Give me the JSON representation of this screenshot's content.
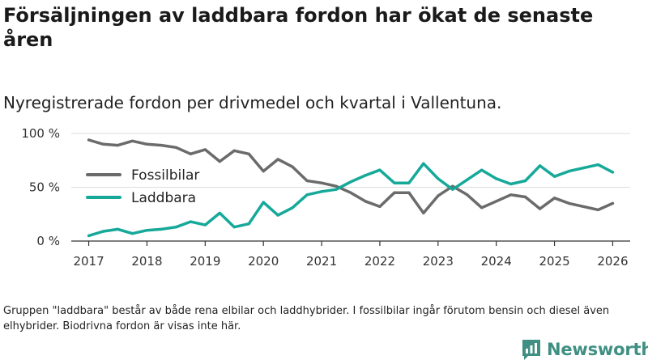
{
  "title": "Försäljningen av laddbara fordon har ökat de senaste åren",
  "subtitle": "Nyregistrerade fordon per drivmedel och kvartal i Vallentuna.",
  "footnote": "Gruppen \"laddbara\" består av både rena elbilar och laddhybrider. I fossilbilar ingår förutom bensin och diesel även elhybrider. Biodrivna fordon är visas inte här.",
  "logo": {
    "text": "Newsworthy",
    "icon": "bar-chart-icon"
  },
  "colors": {
    "fossil": "#6b6b6b",
    "laddbara": "#16a99a",
    "grid": "#dddddd",
    "axis": "#333333",
    "brand": "#3f8f82"
  },
  "chart_data": {
    "type": "line",
    "title": "Försäljningen av laddbara fordon har ökat de senaste åren",
    "subtitle": "Nyregistrerade fordon per drivmedel och kvartal i Vallentuna.",
    "xlabel": "",
    "ylabel": "",
    "xlim": [
      2016.7,
      2026.3
    ],
    "ylim": [
      0,
      100
    ],
    "yticks": [
      0,
      50,
      100
    ],
    "ytick_labels": [
      "0 %",
      "50 %",
      "100 %"
    ],
    "xticks": [
      "2017",
      "2018",
      "2019",
      "2020",
      "2021",
      "2022",
      "2023",
      "2024",
      "2025",
      "2026"
    ],
    "grid": true,
    "legend_position": "left",
    "x": [
      2017,
      2017.25,
      2017.5,
      2017.75,
      2018,
      2018.25,
      2018.5,
      2018.75,
      2019,
      2019.25,
      2019.5,
      2019.75,
      2020,
      2020.25,
      2020.5,
      2020.75,
      2021,
      2021.25,
      2021.5,
      2021.75,
      2022,
      2022.25,
      2022.5,
      2022.75,
      2023,
      2023.25,
      2023.5,
      2023.75,
      2024,
      2024.25,
      2024.5,
      2024.75,
      2025,
      2025.25,
      2025.5,
      2025.75,
      2026
    ],
    "series": [
      {
        "name": "Fossilbilar",
        "color": "#6b6b6b",
        "values": [
          94,
          90,
          89,
          93,
          90,
          89,
          87,
          81,
          85,
          74,
          84,
          81,
          65,
          76,
          69,
          56,
          54,
          51,
          45,
          37,
          32,
          45,
          45,
          26,
          42,
          51,
          43,
          31,
          37,
          43,
          41,
          30,
          40,
          35,
          32,
          29,
          35
        ]
      },
      {
        "name": "Laddbara",
        "color": "#16a99a",
        "values": [
          5,
          9,
          11,
          7,
          10,
          11,
          13,
          18,
          15,
          26,
          13,
          16,
          36,
          24,
          31,
          43,
          46,
          48,
          55,
          61,
          66,
          54,
          54,
          72,
          58,
          48,
          57,
          66,
          58,
          53,
          56,
          70,
          60,
          65,
          68,
          71,
          64
        ]
      }
    ]
  }
}
